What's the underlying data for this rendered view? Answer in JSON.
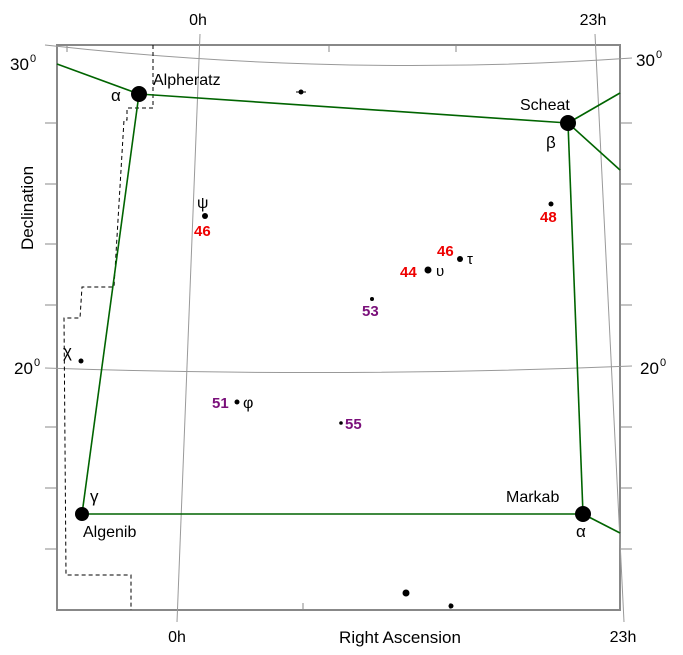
{
  "axes": {
    "x_title": "Right Ascension",
    "y_title": "Declination",
    "ra_left": "0h",
    "ra_right": "23h",
    "dec_top_left": "30",
    "dec_top_right": "30",
    "dec_mid_left": "20",
    "dec_mid_right": "20",
    "degree_mark": "0"
  },
  "bright_stars": [
    {
      "name": "Alpheratz",
      "greek": "α"
    },
    {
      "name": "Scheat",
      "greek": "β"
    },
    {
      "name": "Algenib",
      "greek": "γ"
    },
    {
      "name": "Markab",
      "greek": "α"
    }
  ],
  "star_labels": {
    "psi": "ψ",
    "psi_num": "46",
    "chi": "χ",
    "phi": "φ",
    "phi_num": "51",
    "upsilon": "υ",
    "upsilon_num": "44",
    "tau": "τ",
    "tau_num": "46",
    "num_48": "48",
    "num_53": "53",
    "num_55": "55"
  },
  "colors": {
    "frame": "#888888",
    "grid": "#999999",
    "lines": "#006400",
    "red": "#ee0000",
    "purple": "#7a0f7a"
  }
}
